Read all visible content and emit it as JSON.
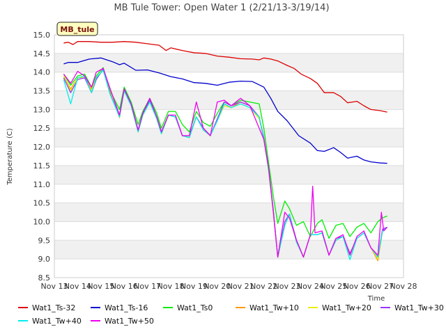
{
  "chart_data": {
    "type": "line",
    "title": "MB Tule Tower: Open Water 1 (2/21/13-3/19/14)",
    "badge": "MB_tule",
    "xlabel": "Time",
    "ylabel": "Temperature (C)",
    "xlim": [
      13,
      28
    ],
    "ylim": [
      8.5,
      15.0
    ],
    "x_ticks": [
      13,
      14,
      15,
      16,
      17,
      18,
      19,
      20,
      21,
      22,
      23,
      24,
      25,
      26,
      27,
      28
    ],
    "x_tick_labels": [
      "Nov 13",
      "Nov 14",
      "Nov 15",
      "Nov 16",
      "Nov 17",
      "Nov 18",
      "Nov 19",
      "Nov 20",
      "Nov 21",
      "Nov 22",
      "Nov 23",
      "Nov 24",
      "Nov 25",
      "Nov 26",
      "Nov 27",
      "Nov 28"
    ],
    "y_ticks": [
      8.5,
      9.0,
      9.5,
      10.0,
      10.5,
      11.0,
      11.5,
      12.0,
      12.5,
      13.0,
      13.5,
      14.0,
      14.5,
      15.0
    ],
    "y_tick_labels": [
      "8.5",
      "9.0",
      "9.5",
      "10.0",
      "10.5",
      "11.0",
      "11.5",
      "12.0",
      "12.5",
      "13.0",
      "13.5",
      "14.0",
      "14.5",
      "15.0"
    ],
    "legend_position": "bottom",
    "series": [
      {
        "name": "Wat1_Ts-32",
        "color": "#dd0000",
        "x": [
          13.4,
          13.6,
          13.8,
          14.0,
          14.5,
          15.0,
          15.5,
          16.0,
          16.5,
          17.0,
          17.5,
          17.8,
          18.0,
          18.5,
          19.0,
          19.5,
          20.0,
          20.5,
          21.0,
          21.5,
          21.8,
          22.0,
          22.3,
          22.6,
          23.0,
          23.3,
          23.6,
          24.0,
          24.3,
          24.6,
          25.0,
          25.3,
          25.6,
          26.0,
          26.3,
          26.6,
          27.0,
          27.3
        ],
        "y": [
          14.78,
          14.8,
          14.74,
          14.82,
          14.82,
          14.8,
          14.8,
          14.82,
          14.8,
          14.76,
          14.72,
          14.58,
          14.65,
          14.58,
          14.52,
          14.5,
          14.43,
          14.4,
          14.36,
          14.35,
          14.33,
          14.38,
          14.35,
          14.3,
          14.18,
          14.1,
          13.95,
          13.83,
          13.7,
          13.45,
          13.45,
          13.35,
          13.18,
          13.22,
          13.1,
          13.0,
          12.97,
          12.93
        ]
      },
      {
        "name": "Wat1_Ts-16",
        "color": "#0000cc",
        "x": [
          13.4,
          13.6,
          14.0,
          14.5,
          15.0,
          15.5,
          15.8,
          16.0,
          16.5,
          17.0,
          17.5,
          18.0,
          18.5,
          19.0,
          19.5,
          20.0,
          20.5,
          21.0,
          21.5,
          22.0,
          22.3,
          22.6,
          23.0,
          23.5,
          24.0,
          24.3,
          24.6,
          25.0,
          25.3,
          25.6,
          26.0,
          26.3,
          26.6,
          27.0,
          27.3
        ],
        "y": [
          14.22,
          14.26,
          14.26,
          14.35,
          14.38,
          14.28,
          14.2,
          14.24,
          14.05,
          14.06,
          13.98,
          13.88,
          13.82,
          13.72,
          13.7,
          13.65,
          13.73,
          13.76,
          13.75,
          13.6,
          13.3,
          12.95,
          12.7,
          12.3,
          12.1,
          11.9,
          11.88,
          11.98,
          11.85,
          11.7,
          11.75,
          11.65,
          11.6,
          11.57,
          11.56
        ]
      },
      {
        "name": "Wat1_Ts0",
        "color": "#00ee00",
        "x": [
          13.4,
          13.7,
          14.0,
          14.3,
          14.6,
          14.8,
          15.1,
          15.4,
          15.8,
          16.0,
          16.3,
          16.6,
          16.8,
          17.1,
          17.4,
          17.6,
          17.9,
          18.2,
          18.5,
          18.8,
          19.1,
          19.4,
          19.7,
          20.0,
          20.3,
          20.6,
          21.0,
          21.4,
          21.8,
          22.0,
          22.2,
          22.4,
          22.6,
          22.9,
          23.1,
          23.4,
          23.7,
          24.0,
          24.3,
          24.5,
          24.8,
          25.1,
          25.4,
          25.7,
          26.0,
          26.3,
          26.6,
          26.9,
          27.1,
          27.3
        ],
        "y": [
          13.95,
          13.65,
          13.9,
          13.95,
          13.6,
          13.9,
          14.12,
          13.5,
          13.0,
          13.6,
          13.2,
          12.6,
          12.95,
          13.3,
          12.9,
          12.5,
          12.95,
          12.95,
          12.6,
          12.4,
          12.95,
          12.65,
          12.55,
          12.9,
          13.2,
          13.1,
          13.25,
          13.2,
          13.15,
          12.5,
          11.6,
          10.7,
          9.95,
          10.55,
          10.35,
          9.9,
          10.0,
          9.6,
          9.95,
          10.05,
          9.55,
          9.9,
          9.95,
          9.6,
          9.85,
          9.95,
          9.7,
          10.0,
          10.1,
          10.15
        ]
      },
      {
        "name": "Wat1_Tw+10",
        "color": "#ff9900",
        "x": [
          13.4,
          13.7,
          14.0,
          14.3,
          14.6,
          14.8,
          15.1,
          15.4,
          15.8,
          16.0,
          16.3,
          16.6,
          16.8,
          17.1,
          17.4,
          17.6,
          17.9,
          18.2,
          18.5,
          18.8,
          19.1,
          19.4,
          19.7,
          20.0,
          20.3,
          20.6,
          21.0,
          21.4,
          21.8,
          22.0,
          22.2,
          22.4,
          22.6,
          22.9,
          23.1,
          23.4,
          23.7,
          24.0,
          24.3,
          24.5,
          24.8,
          25.1,
          25.4,
          25.7,
          26.0,
          26.3,
          26.6,
          26.9,
          27.1,
          27.3
        ],
        "y": [
          13.9,
          13.55,
          13.85,
          13.9,
          13.55,
          13.85,
          14.05,
          13.45,
          12.78,
          13.5,
          13.1,
          12.4,
          12.85,
          13.2,
          12.75,
          12.35,
          12.85,
          12.8,
          12.3,
          12.25,
          12.8,
          12.45,
          12.3,
          12.7,
          13.15,
          13.05,
          13.2,
          13.1,
          12.8,
          12.2,
          11.4,
          10.3,
          9.05,
          9.9,
          10.2,
          9.5,
          9.05,
          9.65,
          9.65,
          9.7,
          9.1,
          9.5,
          9.6,
          9.1,
          9.55,
          9.7,
          9.3,
          8.95,
          9.75,
          9.85
        ]
      },
      {
        "name": "Wat1_Tw+20",
        "color": "#eeee00",
        "x": [
          13.4,
          13.7,
          14.0,
          14.3,
          14.6,
          14.8,
          15.1,
          15.4,
          15.8,
          16.0,
          16.3,
          16.6,
          16.8,
          17.1,
          17.4,
          17.6,
          17.9,
          18.2,
          18.5,
          18.8,
          19.1,
          19.4,
          19.7,
          20.0,
          20.3,
          20.6,
          21.0,
          21.4,
          21.8,
          22.0,
          22.2,
          22.4,
          22.6,
          22.9,
          23.1,
          23.4,
          23.7,
          24.0,
          24.3,
          24.5,
          24.8,
          25.1,
          25.4,
          25.7,
          26.0,
          26.3,
          26.6,
          26.9,
          27.1,
          27.3
        ],
        "y": [
          13.9,
          13.5,
          13.85,
          13.85,
          13.5,
          13.85,
          14.05,
          13.4,
          12.8,
          13.5,
          13.1,
          12.4,
          12.85,
          13.2,
          12.75,
          12.35,
          12.85,
          12.8,
          12.3,
          12.25,
          12.8,
          12.45,
          12.3,
          12.7,
          13.1,
          13.05,
          13.15,
          13.05,
          12.75,
          12.2,
          11.4,
          10.25,
          9.05,
          9.9,
          10.2,
          9.45,
          9.05,
          9.65,
          9.65,
          9.7,
          9.1,
          9.5,
          9.6,
          9.1,
          9.55,
          9.7,
          9.3,
          9.0,
          9.75,
          9.85
        ]
      },
      {
        "name": "Wat1_Tw+30",
        "color": "#9933ff",
        "x": [
          13.4,
          13.7,
          14.0,
          14.3,
          14.6,
          14.8,
          15.1,
          15.4,
          15.8,
          16.0,
          16.3,
          16.6,
          16.8,
          17.1,
          17.4,
          17.6,
          17.9,
          18.2,
          18.5,
          18.8,
          19.1,
          19.4,
          19.7,
          20.0,
          20.3,
          20.6,
          21.0,
          21.4,
          21.8,
          22.0,
          22.2,
          22.4,
          22.6,
          22.9,
          23.1,
          23.4,
          23.7,
          24.0,
          24.3,
          24.5,
          24.8,
          25.1,
          25.4,
          25.7,
          26.0,
          26.3,
          26.6,
          26.9,
          27.1,
          27.3
        ],
        "y": [
          13.85,
          13.45,
          13.8,
          13.85,
          13.45,
          13.8,
          14.08,
          13.4,
          12.85,
          13.55,
          13.15,
          12.45,
          12.9,
          13.25,
          12.8,
          12.4,
          12.85,
          12.8,
          12.3,
          12.3,
          12.8,
          12.5,
          12.3,
          12.75,
          13.2,
          13.1,
          13.2,
          13.1,
          12.8,
          12.25,
          11.45,
          10.35,
          9.05,
          10.0,
          10.2,
          9.5,
          9.05,
          9.65,
          9.65,
          9.7,
          9.1,
          9.55,
          9.6,
          9.15,
          9.55,
          9.7,
          9.3,
          9.05,
          9.8,
          9.85
        ]
      },
      {
        "name": "Wat1_Tw+40",
        "color": "#00eeee",
        "x": [
          13.4,
          13.7,
          14.0,
          14.3,
          14.6,
          14.8,
          15.1,
          15.4,
          15.8,
          16.0,
          16.3,
          16.6,
          16.8,
          17.1,
          17.4,
          17.6,
          17.9,
          18.2,
          18.5,
          18.8,
          19.1,
          19.4,
          19.7,
          20.0,
          20.3,
          20.6,
          21.0,
          21.4,
          21.8,
          22.0,
          22.2,
          22.4,
          22.6,
          22.9,
          23.1,
          23.4,
          23.7,
          24.0,
          24.3,
          24.5,
          24.8,
          25.1,
          25.4,
          25.7,
          26.0,
          26.3,
          26.6,
          26.9,
          27.1,
          27.3
        ],
        "y": [
          13.8,
          13.15,
          13.85,
          13.9,
          13.45,
          13.85,
          14.05,
          13.4,
          12.8,
          13.5,
          13.1,
          12.4,
          12.85,
          13.2,
          12.75,
          12.35,
          12.85,
          12.8,
          12.3,
          12.25,
          12.8,
          12.45,
          12.3,
          12.7,
          13.15,
          13.05,
          13.15,
          13.05,
          12.8,
          12.2,
          11.4,
          10.3,
          9.05,
          9.9,
          10.2,
          9.45,
          9.05,
          9.65,
          9.65,
          9.7,
          9.1,
          9.5,
          9.6,
          8.98,
          9.55,
          9.7,
          9.3,
          9.05,
          9.75,
          9.85
        ]
      },
      {
        "name": "Wat1_Tw+50",
        "color": "#ee00ee",
        "x": [
          13.4,
          13.7,
          14.0,
          14.3,
          14.6,
          14.8,
          15.1,
          15.4,
          15.8,
          16.0,
          16.3,
          16.6,
          16.8,
          17.1,
          17.4,
          17.6,
          17.9,
          18.2,
          18.5,
          18.8,
          19.1,
          19.4,
          19.7,
          20.0,
          20.3,
          20.6,
          21.0,
          21.4,
          21.8,
          22.0,
          22.2,
          22.4,
          22.6,
          22.9,
          23.1,
          23.4,
          23.7,
          24.0,
          24.1,
          24.2,
          24.5,
          24.8,
          25.1,
          25.4,
          25.7,
          26.0,
          26.3,
          26.6,
          26.9,
          27.05,
          27.15,
          27.3
        ],
        "y": [
          13.95,
          13.7,
          14.02,
          13.9,
          13.6,
          14.0,
          14.1,
          13.55,
          12.85,
          13.55,
          13.15,
          12.45,
          12.9,
          13.3,
          12.8,
          12.4,
          12.85,
          12.85,
          12.3,
          12.3,
          13.2,
          12.5,
          12.3,
          13.2,
          13.25,
          13.1,
          13.3,
          13.1,
          12.5,
          12.2,
          11.45,
          10.3,
          9.05,
          10.25,
          10.1,
          9.5,
          9.05,
          9.65,
          10.95,
          9.7,
          9.75,
          9.1,
          9.55,
          9.65,
          9.1,
          9.6,
          9.75,
          9.3,
          9.1,
          10.25,
          9.75,
          9.85
        ]
      }
    ]
  }
}
